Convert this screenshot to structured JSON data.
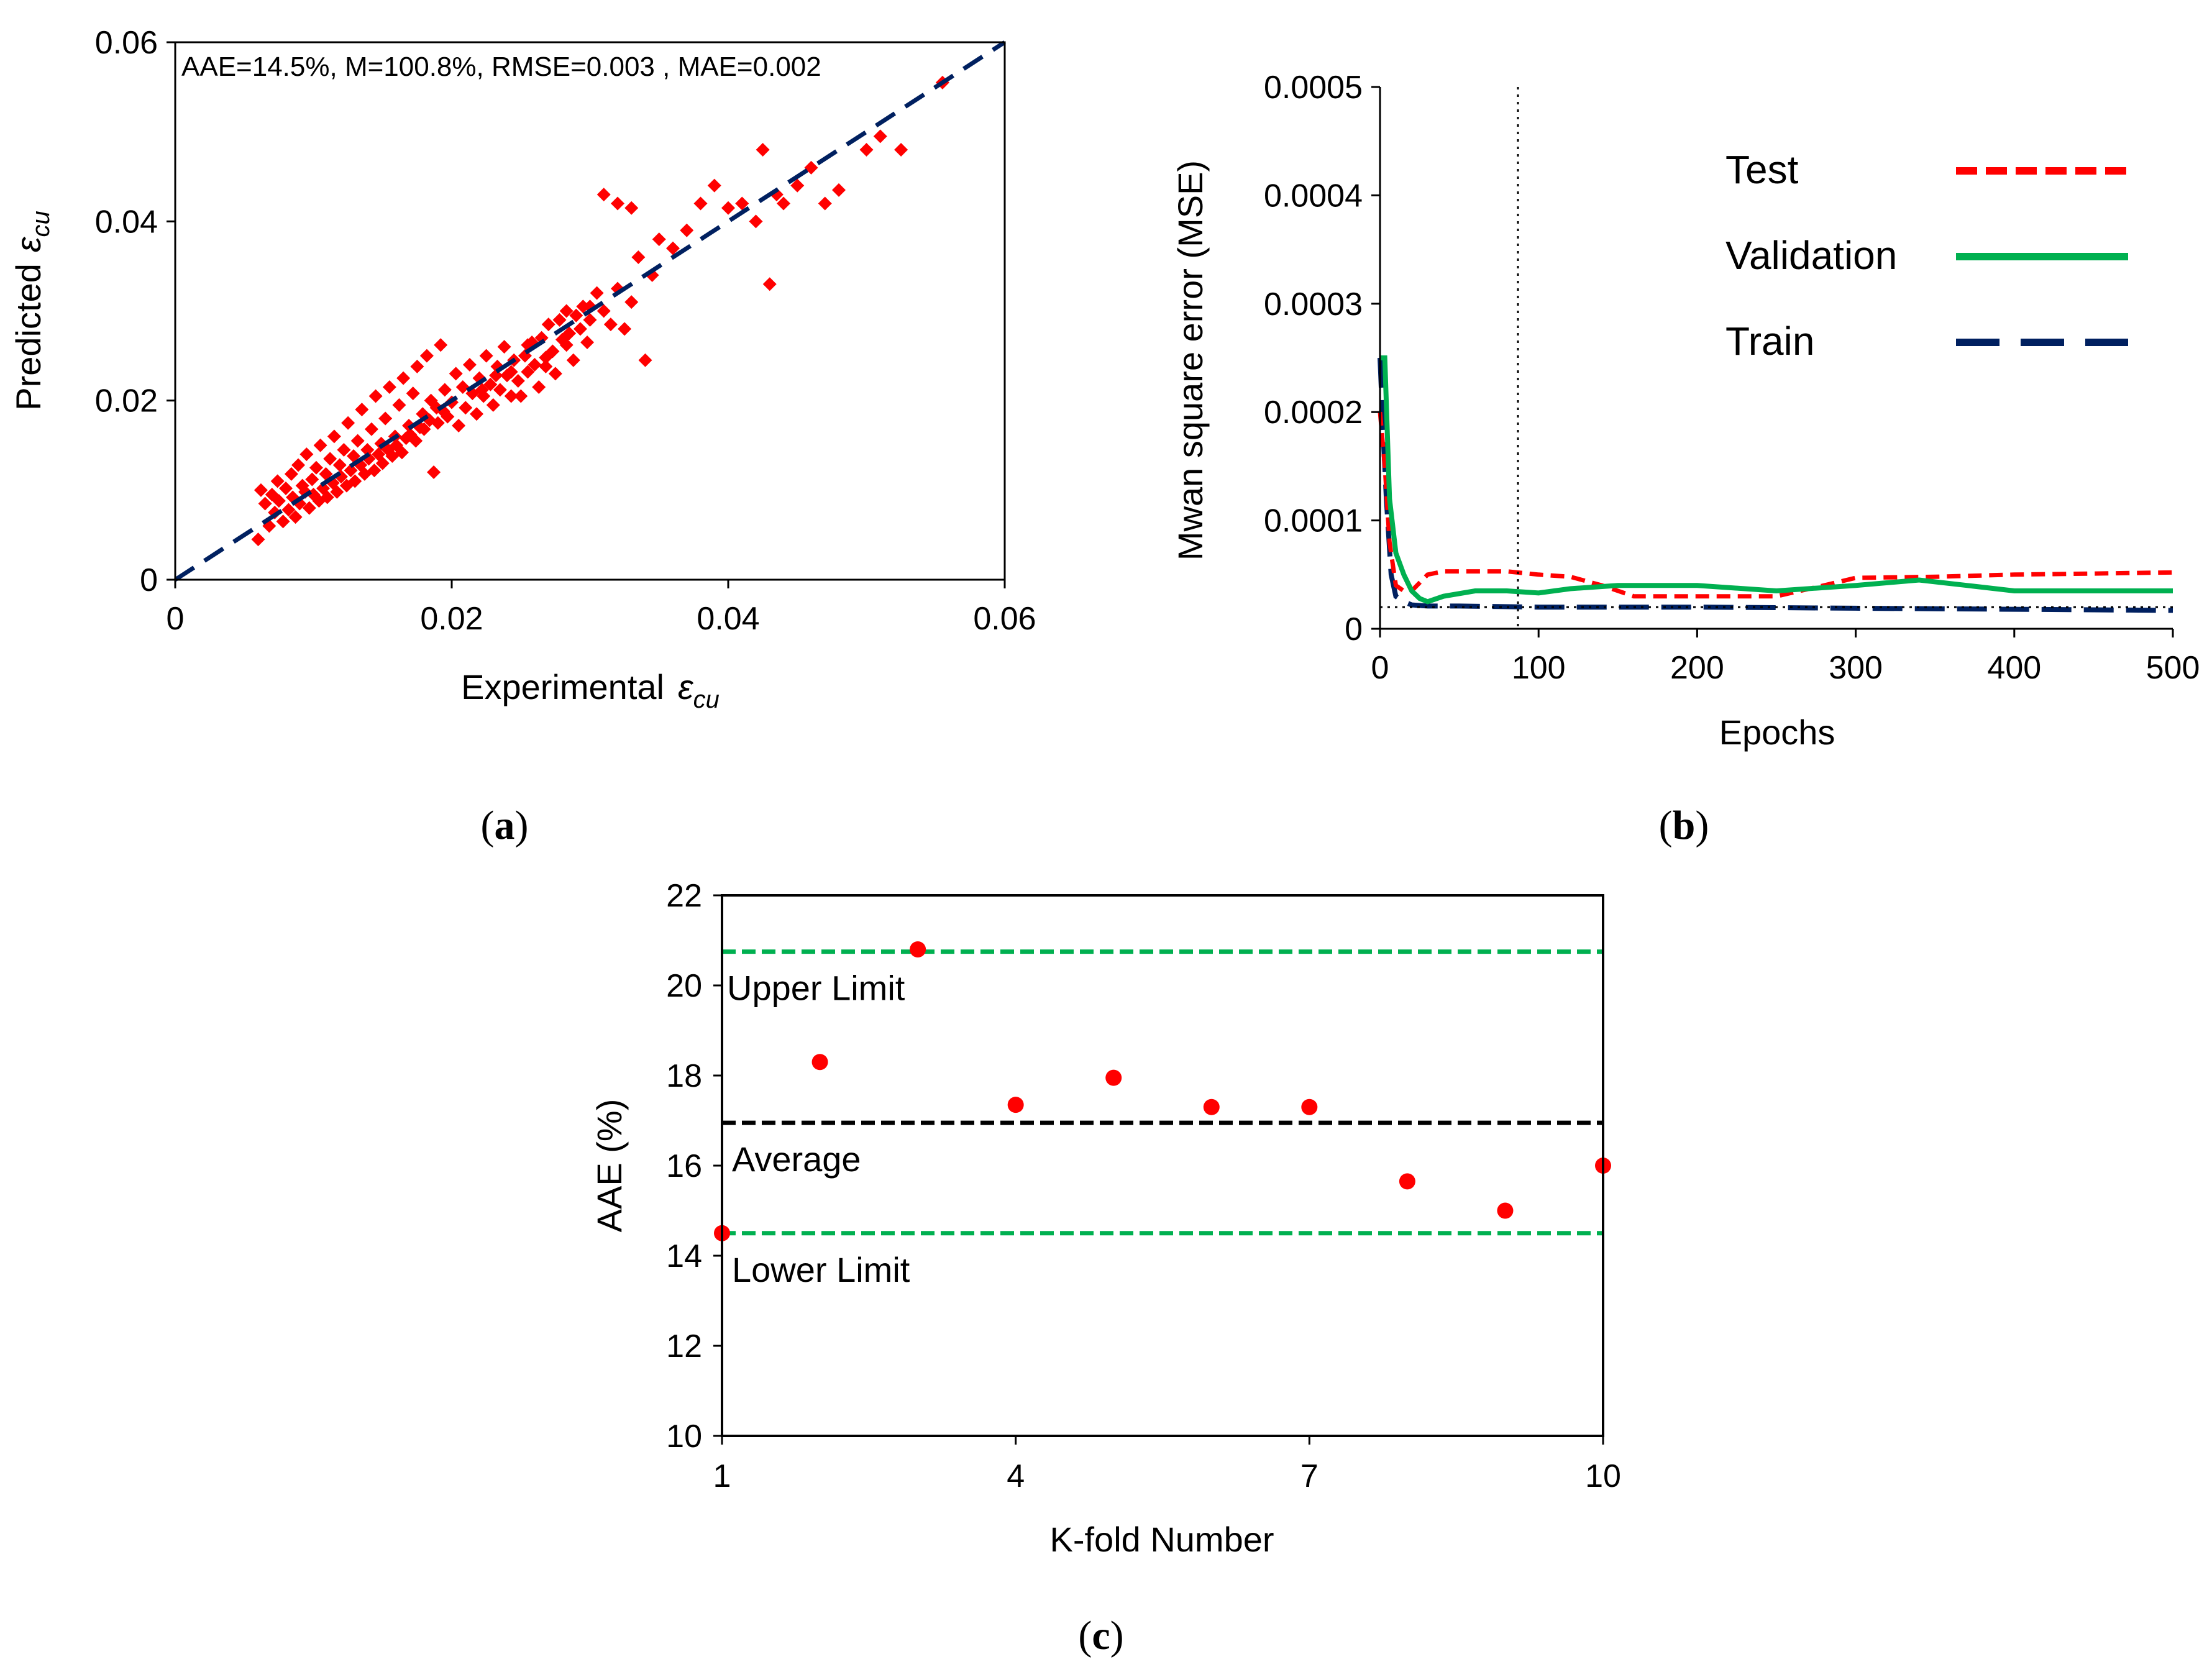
{
  "captions": {
    "a": {
      "open": "(",
      "letter": "a",
      "close": ")"
    },
    "b": {
      "open": "(",
      "letter": "b",
      "close": ")"
    },
    "c": {
      "open": "(",
      "letter": "c",
      "close": ")"
    }
  },
  "colors": {
    "points": "#ff0000",
    "diagonal": "#002060",
    "test": "#ff0000",
    "validation": "#00b050",
    "train": "#002060",
    "limits": "#00b050",
    "average": "#000000"
  },
  "chart_data": [
    {
      "id": "a",
      "type": "scatter",
      "title": "",
      "xlabel": "Experimental",
      "xlabel_symbol": "ε",
      "xlabel_sub": "cu",
      "ylabel": "Predicted",
      "ylabel_symbol": "ε",
      "ylabel_sub": "cu",
      "xlim": [
        0,
        0.06
      ],
      "ylim": [
        0,
        0.06
      ],
      "xticks": [
        "0",
        "0.02",
        "0.04",
        "0.06"
      ],
      "yticks": [
        "0",
        "0.02",
        "0.04",
        "0.06"
      ],
      "annotation": "AAE=14.5%,  M=100.8%,  RMSE=0.003  , MAE=0.002",
      "reference_line": {
        "x": [
          0,
          0.06
        ],
        "y": [
          0,
          0.06
        ],
        "style": "dashed"
      },
      "grid": false,
      "point_marker": "diamond",
      "points": [
        [
          0.006,
          0.0045
        ],
        [
          0.0062,
          0.01
        ],
        [
          0.0065,
          0.0085
        ],
        [
          0.0068,
          0.006
        ],
        [
          0.007,
          0.0095
        ],
        [
          0.0072,
          0.0075
        ],
        [
          0.0074,
          0.011
        ],
        [
          0.0075,
          0.0088
        ],
        [
          0.0078,
          0.0065
        ],
        [
          0.008,
          0.0102
        ],
        [
          0.0082,
          0.0078
        ],
        [
          0.0084,
          0.0118
        ],
        [
          0.0085,
          0.0092
        ],
        [
          0.0087,
          0.007
        ],
        [
          0.0089,
          0.0128
        ],
        [
          0.009,
          0.0085
        ],
        [
          0.0092,
          0.0105
        ],
        [
          0.0094,
          0.0098
        ],
        [
          0.0095,
          0.014
        ],
        [
          0.0097,
          0.008
        ],
        [
          0.0099,
          0.0112
        ],
        [
          0.01,
          0.0095
        ],
        [
          0.0102,
          0.0125
        ],
        [
          0.0104,
          0.0088
        ],
        [
          0.0105,
          0.015
        ],
        [
          0.0107,
          0.0102
        ],
        [
          0.0109,
          0.0118
        ],
        [
          0.011,
          0.0092
        ],
        [
          0.0112,
          0.0135
        ],
        [
          0.0114,
          0.0108
        ],
        [
          0.0115,
          0.016
        ],
        [
          0.0117,
          0.0098
        ],
        [
          0.0119,
          0.0128
        ],
        [
          0.012,
          0.0115
        ],
        [
          0.0122,
          0.0145
        ],
        [
          0.0124,
          0.0105
        ],
        [
          0.0125,
          0.0175
        ],
        [
          0.0127,
          0.0122
        ],
        [
          0.0129,
          0.0138
        ],
        [
          0.013,
          0.011
        ],
        [
          0.0132,
          0.0155
        ],
        [
          0.0134,
          0.0128
        ],
        [
          0.0135,
          0.019
        ],
        [
          0.0137,
          0.0118
        ],
        [
          0.0139,
          0.0145
        ],
        [
          0.014,
          0.0135
        ],
        [
          0.0142,
          0.0168
        ],
        [
          0.0144,
          0.0122
        ],
        [
          0.0145,
          0.0205
        ],
        [
          0.0147,
          0.014
        ],
        [
          0.0149,
          0.0152
        ],
        [
          0.015,
          0.013
        ],
        [
          0.0152,
          0.018
        ],
        [
          0.0154,
          0.0145
        ],
        [
          0.0155,
          0.0215
        ],
        [
          0.0157,
          0.0138
        ],
        [
          0.0159,
          0.016
        ],
        [
          0.016,
          0.015
        ],
        [
          0.0162,
          0.0195
        ],
        [
          0.0164,
          0.0142
        ],
        [
          0.0165,
          0.0225
        ],
        [
          0.0167,
          0.0158
        ],
        [
          0.0169,
          0.0172
        ],
        [
          0.017,
          0.0162
        ],
        [
          0.0172,
          0.0208
        ],
        [
          0.0174,
          0.0155
        ],
        [
          0.0175,
          0.0238
        ],
        [
          0.0177,
          0.017
        ],
        [
          0.0179,
          0.0185
        ],
        [
          0.018,
          0.0168
        ],
        [
          0.0182,
          0.025
        ],
        [
          0.0184,
          0.0178
        ],
        [
          0.0185,
          0.02
        ],
        [
          0.0187,
          0.012
        ],
        [
          0.0189,
          0.0192
        ],
        [
          0.019,
          0.0175
        ],
        [
          0.0192,
          0.0262
        ],
        [
          0.0194,
          0.0188
        ],
        [
          0.0195,
          0.0212
        ],
        [
          0.0197,
          0.0182
        ],
        [
          0.02,
          0.0198
        ],
        [
          0.0203,
          0.023
        ],
        [
          0.0205,
          0.0172
        ],
        [
          0.0208,
          0.0215
        ],
        [
          0.021,
          0.0192
        ],
        [
          0.0213,
          0.024
        ],
        [
          0.0215,
          0.0208
        ],
        [
          0.0218,
          0.0185
        ],
        [
          0.022,
          0.0225
        ],
        [
          0.0223,
          0.0205
        ],
        [
          0.0225,
          0.025
        ],
        [
          0.0228,
          0.0218
        ],
        [
          0.023,
          0.0195
        ],
        [
          0.0233,
          0.0238
        ],
        [
          0.0235,
          0.0212
        ],
        [
          0.0238,
          0.026
        ],
        [
          0.024,
          0.0228
        ],
        [
          0.0243,
          0.0205
        ],
        [
          0.0245,
          0.0245
        ],
        [
          0.0248,
          0.0222
        ],
        [
          0.025,
          0.0205
        ],
        [
          0.0253,
          0.025
        ],
        [
          0.0255,
          0.0232
        ],
        [
          0.0258,
          0.0265
        ],
        [
          0.026,
          0.024
        ],
        [
          0.0263,
          0.0215
        ],
        [
          0.0265,
          0.027
        ],
        [
          0.0268,
          0.0248
        ],
        [
          0.027,
          0.0285
        ],
        [
          0.0273,
          0.0255
        ],
        [
          0.0275,
          0.023
        ],
        [
          0.0278,
          0.029
        ],
        [
          0.028,
          0.0268
        ],
        [
          0.0283,
          0.03
        ],
        [
          0.0285,
          0.0275
        ],
        [
          0.0288,
          0.0245
        ],
        [
          0.029,
          0.0295
        ],
        [
          0.0293,
          0.028
        ],
        [
          0.0295,
          0.0305
        ],
        [
          0.0298,
          0.0265
        ],
        [
          0.03,
          0.029
        ],
        [
          0.0305,
          0.032
        ],
        [
          0.031,
          0.03
        ],
        [
          0.0315,
          0.0285
        ],
        [
          0.032,
          0.0325
        ],
        [
          0.0325,
          0.028
        ],
        [
          0.033,
          0.031
        ],
        [
          0.0335,
          0.036
        ],
        [
          0.034,
          0.0245
        ],
        [
          0.0345,
          0.034
        ],
        [
          0.031,
          0.043
        ],
        [
          0.032,
          0.042
        ],
        [
          0.033,
          0.0415
        ],
        [
          0.035,
          0.038
        ],
        [
          0.036,
          0.037
        ],
        [
          0.037,
          0.039
        ],
        [
          0.038,
          0.042
        ],
        [
          0.039,
          0.044
        ],
        [
          0.04,
          0.0415
        ],
        [
          0.041,
          0.042
        ],
        [
          0.042,
          0.04
        ],
        [
          0.0425,
          0.048
        ],
        [
          0.043,
          0.033
        ],
        [
          0.0435,
          0.043
        ],
        [
          0.044,
          0.042
        ],
        [
          0.045,
          0.044
        ],
        [
          0.046,
          0.046
        ],
        [
          0.047,
          0.042
        ],
        [
          0.048,
          0.0435
        ],
        [
          0.05,
          0.048
        ],
        [
          0.051,
          0.0495
        ],
        [
          0.0525,
          0.048
        ],
        [
          0.0555,
          0.0555
        ],
        [
          0.03,
          0.0305
        ],
        [
          0.0283,
          0.0262
        ],
        [
          0.0268,
          0.0238
        ],
        [
          0.0255,
          0.0262
        ],
        [
          0.0243,
          0.0232
        ],
        [
          0.0232,
          0.0228
        ],
        [
          0.0222,
          0.0212
        ]
      ]
    },
    {
      "id": "b",
      "type": "line",
      "title": "",
      "xlabel": "Epochs",
      "ylabel": "Mwan square error (MSE)",
      "xlim": [
        0,
        500
      ],
      "ylim": [
        0,
        0.0005
      ],
      "xticks": [
        "0",
        "100",
        "200",
        "300",
        "400",
        "500"
      ],
      "yticks": [
        "0",
        "0.0001",
        "0.0002",
        "0.0003",
        "0.0004",
        "0.0005"
      ],
      "legend_position": "top-right",
      "grid": false,
      "best_epoch_marker": {
        "x": 87,
        "y": 2e-05
      },
      "series": [
        {
          "name": "Test",
          "style": "short-dashed",
          "x": [
            0,
            3,
            6,
            10,
            15,
            20,
            30,
            40,
            60,
            80,
            100,
            120,
            140,
            160,
            200,
            250,
            280,
            300,
            350,
            400,
            450,
            500
          ],
          "y": [
            0.0002,
            0.00015,
            8e-05,
            4e-05,
            3.5e-05,
            3.5e-05,
            5e-05,
            5.3e-05,
            5.3e-05,
            5.3e-05,
            5e-05,
            4.8e-05,
            4e-05,
            3e-05,
            3e-05,
            3e-05,
            4e-05,
            4.7e-05,
            4.8e-05,
            5e-05,
            5.1e-05,
            5.2e-05
          ]
        },
        {
          "name": "Validation",
          "style": "solid",
          "x": [
            0,
            3,
            6,
            10,
            15,
            20,
            25,
            30,
            40,
            60,
            80,
            100,
            120,
            150,
            180,
            200,
            250,
            300,
            340,
            370,
            400,
            450,
            500
          ],
          "y": [
            0.00025,
            0.00025,
            0.00012,
            7e-05,
            5e-05,
            3.5e-05,
            2.8e-05,
            2.5e-05,
            3e-05,
            3.5e-05,
            3.5e-05,
            3.3e-05,
            3.7e-05,
            4e-05,
            4e-05,
            4e-05,
            3.5e-05,
            4e-05,
            4.5e-05,
            4e-05,
            3.5e-05,
            3.5e-05,
            3.5e-05
          ]
        },
        {
          "name": "Train",
          "style": "long-dashed",
          "x": [
            0,
            2,
            4,
            7,
            10,
            15,
            20,
            30,
            50,
            100,
            200,
            300,
            400,
            500
          ],
          "y": [
            0.00025,
            0.00018,
            0.00012,
            5e-05,
            3e-05,
            2.5e-05,
            2.2e-05,
            2.1e-05,
            2.1e-05,
            2e-05,
            2e-05,
            1.9e-05,
            1.8e-05,
            1.7e-05
          ]
        }
      ]
    },
    {
      "id": "c",
      "type": "scatter",
      "title": "",
      "xlabel": "K-fold Number",
      "ylabel": "AAE  (%)",
      "xlim": [
        1,
        10
      ],
      "ylim": [
        10,
        22
      ],
      "xticks": [
        "1",
        "4",
        "7",
        "10"
      ],
      "yticks": [
        "10",
        "12",
        "14",
        "16",
        "18",
        "20",
        "22"
      ],
      "grid": false,
      "x": [
        1,
        2,
        3,
        4,
        5,
        6,
        7,
        8,
        9,
        10
      ],
      "y": [
        14.5,
        18.3,
        20.8,
        17.35,
        17.95,
        17.3,
        17.3,
        15.65,
        15.0,
        16.0
      ],
      "reference_lines": [
        {
          "label": "Upper Limit",
          "y": 20.75,
          "style": "dashed"
        },
        {
          "label": "Average",
          "y": 16.95,
          "style": "dashed"
        },
        {
          "label": "Lower Limit",
          "y": 14.5,
          "style": "dashed"
        }
      ]
    }
  ]
}
